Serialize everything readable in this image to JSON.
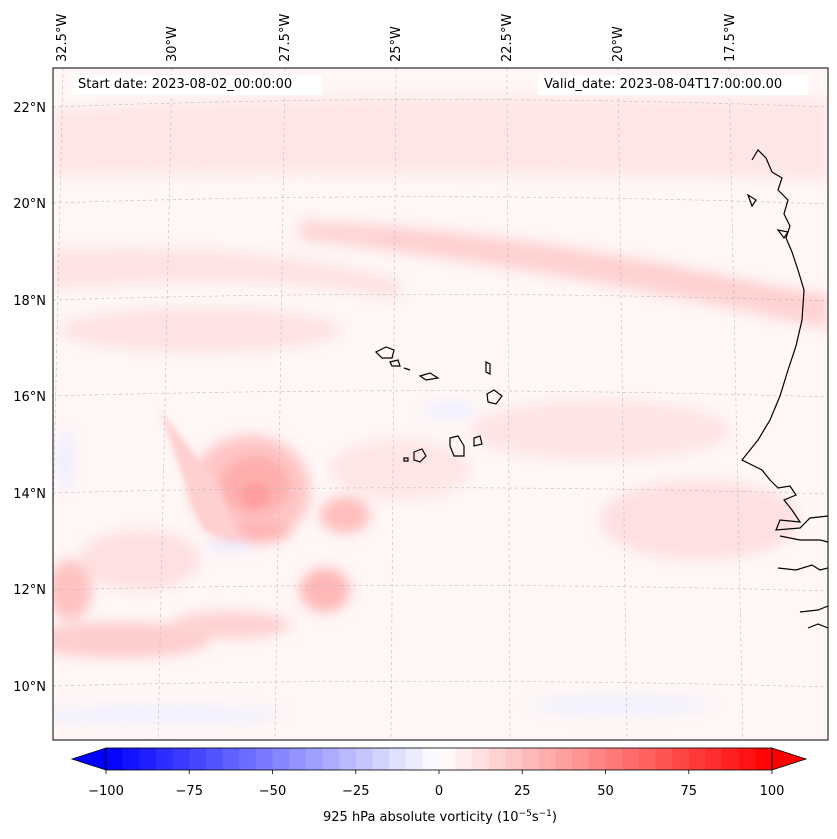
{
  "header": {
    "start_date": "Start date: 2023-08-02_00:00:00",
    "valid_date": "Valid_date: 2023-08-04T17:00:00.00"
  },
  "longitude_labels": [
    "32.5°W",
    "30°W",
    "27.5°W",
    "25°W",
    "22.5°W",
    "20°W",
    "17.5°W"
  ],
  "latitude_labels": [
    "22°N",
    "20°N",
    "18°N",
    "16°N",
    "14°N",
    "12°N",
    "10°N"
  ],
  "colorbar": {
    "label_prefix": "925 hPa absolute vorticity (10",
    "label_exp1": "−5",
    "label_mid": "s",
    "label_exp2": "−1",
    "label_suffix": ")",
    "ticks": [
      "−100",
      "−75",
      "−50",
      "−25",
      "0",
      "25",
      "50",
      "75",
      "100"
    ],
    "min": -100,
    "max": 100,
    "levels": 41,
    "colors": {
      "low": "#0000ff",
      "mid": "#ffffff",
      "high": "#ff0000"
    }
  },
  "colors": {
    "coastline": "#000000",
    "gridline": "#bbbbbb",
    "background": "#fff7f7"
  }
}
